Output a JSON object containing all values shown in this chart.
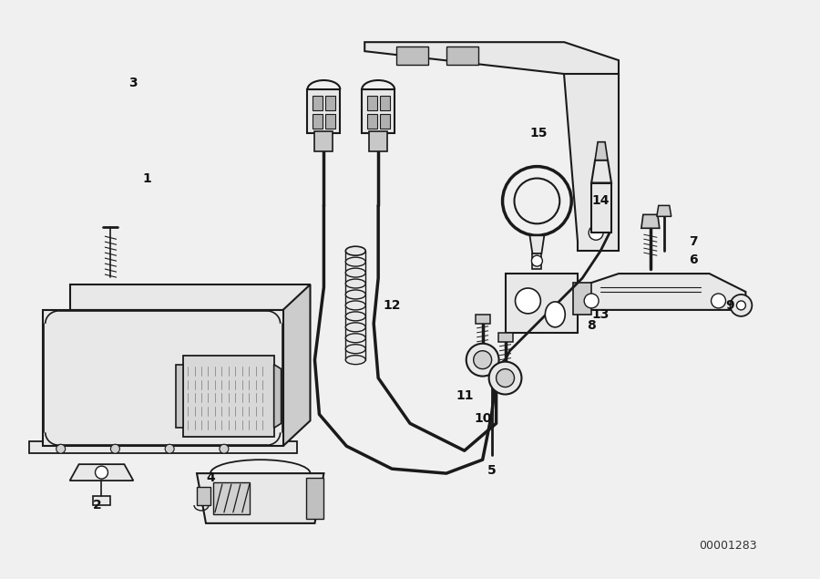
{
  "bg": "#f0f0f0",
  "lc": "#1a1a1a",
  "fig_w": 9.0,
  "fig_h": 6.35,
  "dpi": 100,
  "fig_id": "00001283"
}
